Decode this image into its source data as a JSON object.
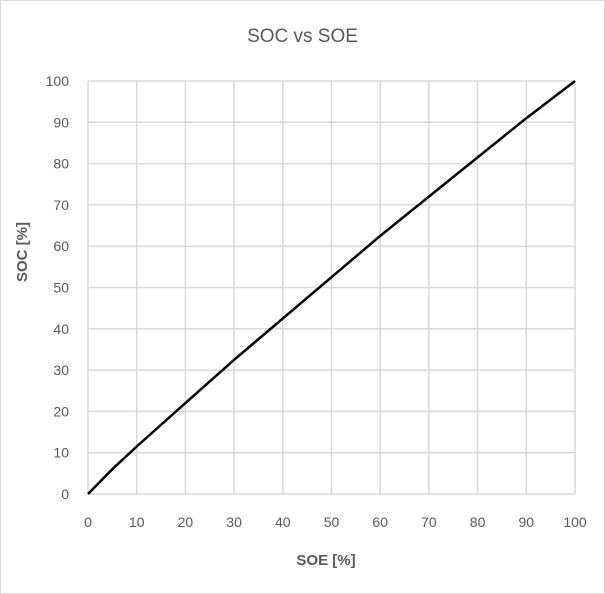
{
  "chart_data": {
    "type": "line",
    "title": "SOC vs SOE",
    "xlabel": "SOE [%]",
    "ylabel": "SOC [%]",
    "xlim": [
      0,
      100
    ],
    "ylim": [
      0,
      100
    ],
    "x_ticks": [
      0,
      10,
      20,
      30,
      40,
      50,
      60,
      70,
      80,
      90,
      100
    ],
    "y_ticks": [
      0,
      10,
      20,
      30,
      40,
      50,
      60,
      70,
      80,
      90,
      100
    ],
    "grid": true,
    "legend": null,
    "series": [
      {
        "name": "SOC",
        "color": "#000000",
        "x": [
          0,
          5,
          10,
          20,
          30,
          40,
          50,
          60,
          70,
          80,
          90,
          100
        ],
        "y": [
          0,
          6,
          11.5,
          22,
          32.5,
          42.5,
          52.5,
          62.5,
          72,
          81.5,
          91,
          100
        ]
      }
    ]
  },
  "colors": {
    "grid": "#d9d9d9",
    "text": "#595959",
    "line": "#000000"
  }
}
